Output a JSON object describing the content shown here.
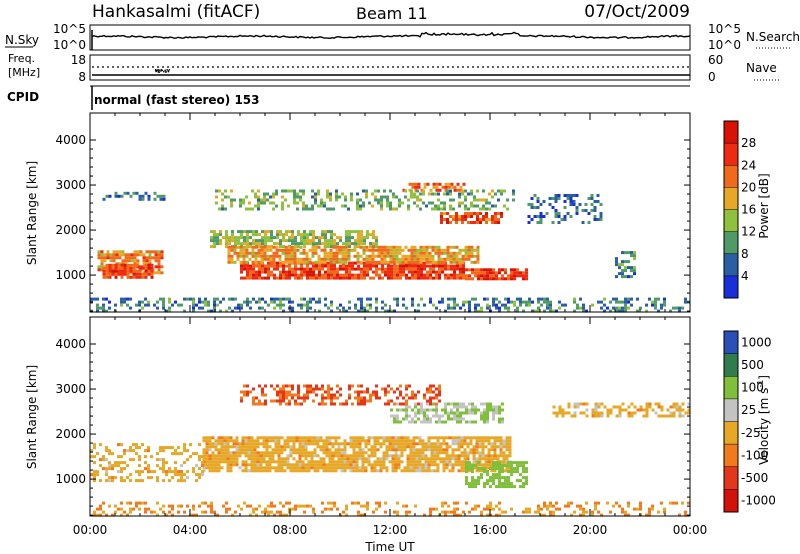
{
  "header": {
    "station": "Hankasalmi (fitACF)",
    "beam": "Beam 11",
    "date": "07/Oct/2009"
  },
  "noise_panel": {
    "left_label": "N.Sky",
    "right_label": "N.Search",
    "left_ticks": [
      "10^5",
      "10^0"
    ],
    "right_ticks": [
      "10^5",
      "10^0"
    ]
  },
  "freq_panel": {
    "left_label_1": "Freq.",
    "left_label_2": "[MHz]",
    "right_label": "Nave",
    "left_ticks": [
      "18",
      "8"
    ],
    "right_ticks": [
      "60",
      "0"
    ]
  },
  "cpid_panel": {
    "label": "CPID",
    "mode": "normal (fast stereo) 153"
  },
  "power_panel": {
    "ylabel": "Slant Range [km]",
    "yticks": [
      "1000",
      "2000",
      "3000",
      "4000"
    ],
    "colorbar_label": "Power [dB]",
    "colorbar_ticks": [
      "4",
      "8",
      "12",
      "16",
      "20",
      "24",
      "28"
    ]
  },
  "velocity_panel": {
    "ylabel": "Slant Range [km]",
    "yticks": [
      "1000",
      "2000",
      "3000",
      "4000"
    ],
    "colorbar_label": "Velocity [m s",
    "colorbar_exp": "-1",
    "colorbar_label_end": "]",
    "colorbar_ticks": [
      "1000",
      "500",
      "100",
      "25",
      "-25",
      "-100",
      "-500",
      "-1000"
    ]
  },
  "x_axis": {
    "label": "Time UT",
    "ticks": [
      "00:00",
      "04:00",
      "08:00",
      "12:00",
      "16:00",
      "20:00",
      "00:00"
    ]
  },
  "chart_data": {
    "type": "heatmap",
    "x_range_hours": [
      0,
      24
    ],
    "y_range_km": [
      180,
      4600
    ],
    "power_colors": [
      "#1a2fd9",
      "#2b5fa5",
      "#4f9a67",
      "#8fc13e",
      "#e6a826",
      "#f06a1c",
      "#ee2a10",
      "#d91208"
    ],
    "power_levels_db": [
      4,
      8,
      12,
      16,
      20,
      24,
      28
    ],
    "velocity_colors": [
      "#2a4fb6",
      "#2f7d4d",
      "#7fbf3a",
      "#c3c3c3",
      "#e6a826",
      "#f07a1c",
      "#e3361a",
      "#d31208"
    ],
    "velocity_levels": [
      1000,
      500,
      100,
      25,
      -25,
      -100,
      -500,
      -1000
    ],
    "scatter_regions_power": [
      {
        "t": [
          0.3,
          2.9
        ],
        "r": [
          1050,
          1550
        ],
        "p": 20,
        "d": 0.75
      },
      {
        "t": [
          0.5,
          2.5
        ],
        "r": [
          950,
          1250
        ],
        "p": 25,
        "d": 0.85
      },
      {
        "t": [
          4.8,
          11.5
        ],
        "r": [
          1650,
          2000
        ],
        "p": 14,
        "d": 0.7
      },
      {
        "t": [
          6.0,
          15.0
        ],
        "r": [
          950,
          1300
        ],
        "p": 25,
        "d": 0.85
      },
      {
        "t": [
          5.5,
          15.5
        ],
        "r": [
          1300,
          1650
        ],
        "p": 19,
        "d": 0.8
      },
      {
        "t": [
          15.0,
          17.5
        ],
        "r": [
          950,
          1150
        ],
        "p": 26,
        "d": 0.8
      },
      {
        "t": [
          14.0,
          16.5
        ],
        "r": [
          2200,
          2400
        ],
        "p": 24,
        "d": 0.7
      },
      {
        "t": [
          12.5,
          15.0
        ],
        "r": [
          2900,
          3050
        ],
        "p": 22,
        "d": 0.6
      },
      {
        "t": [
          5.0,
          17.0
        ],
        "r": [
          2450,
          2900
        ],
        "p": 12,
        "d": 0.35
      },
      {
        "t": [
          0.5,
          3.0
        ],
        "r": [
          2700,
          2850
        ],
        "p": 7,
        "d": 0.45
      },
      {
        "t": [
          17.5,
          20.5
        ],
        "r": [
          2200,
          2800
        ],
        "p": 6,
        "d": 0.35
      },
      {
        "t": [
          21.0,
          21.8
        ],
        "r": [
          1000,
          1600
        ],
        "p": 8,
        "d": 0.45
      },
      {
        "t": [
          0.0,
          24.0
        ],
        "r": [
          200,
          500
        ],
        "p": 8,
        "d": 0.35
      }
    ],
    "scatter_regions_velocity": [
      {
        "t": [
          4.5,
          16.8
        ],
        "r": [
          1200,
          1950
        ],
        "v": 0,
        "d": 0.8
      },
      {
        "t": [
          0.0,
          4.5
        ],
        "r": [
          950,
          1800
        ],
        "v": 0,
        "d": 0.35
      },
      {
        "t": [
          12.0,
          16.5
        ],
        "r": [
          2300,
          2700
        ],
        "v": 100,
        "d": 0.6
      },
      {
        "t": [
          6.0,
          14.0
        ],
        "r": [
          2700,
          3100
        ],
        "v": -100,
        "d": 0.45
      },
      {
        "t": [
          15.0,
          17.5
        ],
        "r": [
          850,
          1400
        ],
        "v": 150,
        "d": 0.6
      },
      {
        "t": [
          18.5,
          24.0
        ],
        "r": [
          2400,
          2700
        ],
        "v": 0,
        "d": 0.45
      },
      {
        "t": [
          0.0,
          24.0
        ],
        "r": [
          200,
          500
        ],
        "v": -25,
        "d": 0.3
      }
    ]
  }
}
